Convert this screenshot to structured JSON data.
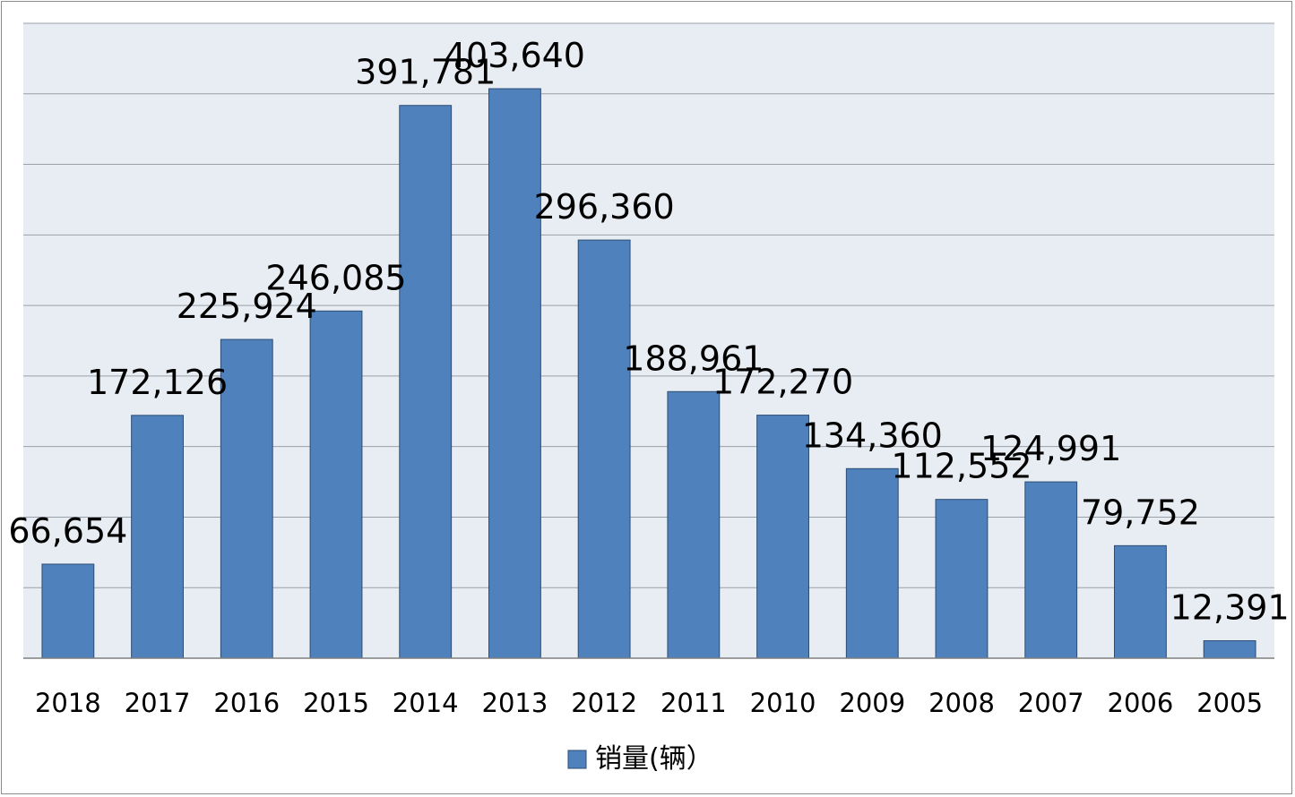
{
  "chart_data": {
    "type": "bar",
    "categories": [
      "2018",
      "2017",
      "2016",
      "2015",
      "2014",
      "2013",
      "2012",
      "2011",
      "2010",
      "2009",
      "2008",
      "2007",
      "2006",
      "2005"
    ],
    "series": [
      {
        "name": "销量(辆）",
        "values": [
          66654,
          172126,
          225924,
          246085,
          391781,
          403640,
          296360,
          188961,
          172270,
          134360,
          112552,
          124991,
          79752,
          12391
        ],
        "labels": [
          "66,654",
          "172,126",
          "225,924",
          "246,085",
          "391,781",
          "403,640",
          "296,360",
          "188,961",
          "172,270",
          "134,360",
          "112,552",
          "124,991",
          "79,752",
          "12,391"
        ]
      }
    ],
    "ylim": [
      0,
      450000
    ],
    "grid": true,
    "legend_position": "bottom",
    "colors": {
      "bar": "#4f81bd",
      "bar_edge": "#2c4d75",
      "plot_bg": "#e8edf4",
      "gridline": "#9aa0a8"
    }
  }
}
